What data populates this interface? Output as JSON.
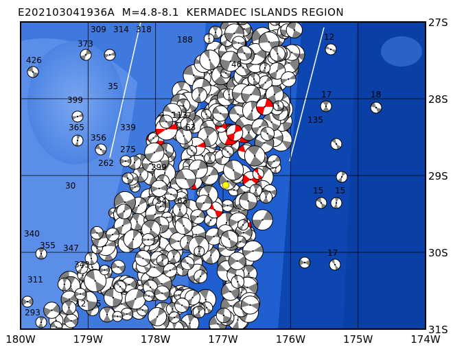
{
  "title": "E202103041936A  M=4.8-8.1  KERMADEC ISLANDS REGION",
  "map": {
    "lon_labels": [
      "180W",
      "179W",
      "178W",
      "177W",
      "176W",
      "175W",
      "174W"
    ],
    "lat_labels": [
      "27S",
      "28S",
      "29S",
      "30S",
      "31S"
    ],
    "lon_range": [
      -180,
      -174
    ],
    "lat_range": [
      -31,
      -27
    ],
    "grid": true,
    "colors": {
      "deep_ocean": "#0a3fa6",
      "mid_ocean": "#1f5fcf",
      "shallow": "#5a8ee8",
      "compression_quadrant": "#808080",
      "highlight_quadrant": "#ff0000",
      "event_marker": "#ffff00"
    },
    "event_marker_label": "",
    "depth_labels": [
      "426",
      "373",
      "309",
      "314",
      "318",
      "399",
      "365",
      "356",
      "262",
      "188",
      "12",
      "17",
      "18",
      "15",
      "113",
      "63",
      "46",
      "35",
      "340",
      "355",
      "347",
      "343",
      "15",
      "17",
      "12",
      "5",
      "135",
      "339",
      "275",
      "299",
      "63",
      "54",
      "30",
      "293",
      "311"
    ]
  }
}
